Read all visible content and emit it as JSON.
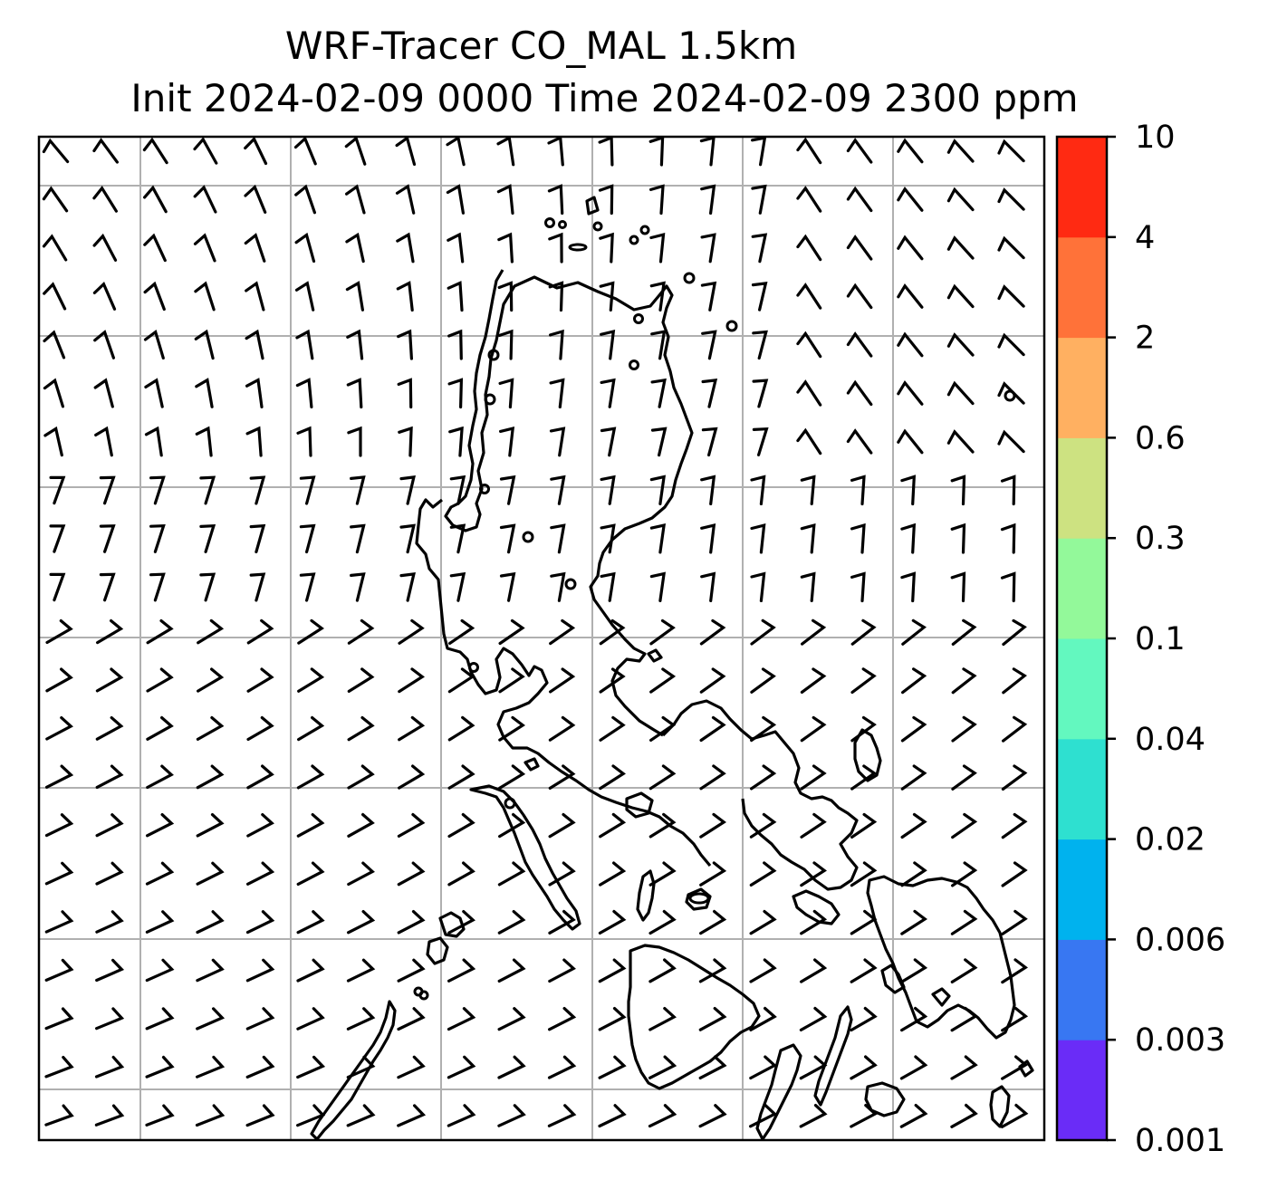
{
  "title_line1": "WRF-Tracer CO_MAL 1.5km",
  "title_line2": "Init 2024-02-09 0000 Time 2024-02-09 2300 ppm",
  "colorbar": {
    "labels": [
      "0.001",
      "0.003",
      "0.006",
      "0.02",
      "0.04",
      "0.1",
      "0.3",
      "0.6",
      "2",
      "4",
      "10"
    ],
    "colors": [
      "#6a2cf7",
      "#3877f2",
      "#00b2ee",
      "#2ee0d0",
      "#63f8bf",
      "#93f99a",
      "#cde281",
      "#ffb061",
      "#ff7239",
      "#ff2a12"
    ]
  },
  "map": {
    "gridlines": true,
    "coastline_color": "#000000",
    "barb_color": "#000000",
    "grid_color": "#b0b0b0"
  }
}
